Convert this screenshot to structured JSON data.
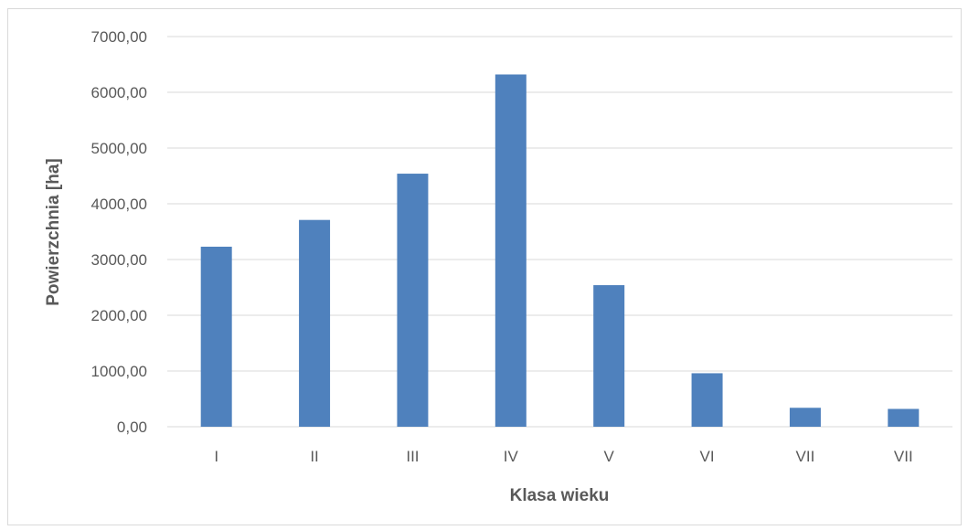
{
  "chart_data": {
    "type": "bar",
    "title": "",
    "xlabel": "Klasa wieku",
    "ylabel": "Powierzchnia [ha]",
    "categories": [
      "I",
      "II",
      "III",
      "IV",
      "V",
      "VI",
      "VII",
      "VII"
    ],
    "values": [
      3230,
      3710,
      4540,
      6320,
      2540,
      960,
      340,
      320
    ],
    "ylim": [
      0,
      7000
    ],
    "yticks": [
      "0,00",
      "1000,00",
      "2000,00",
      "3000,00",
      "4000,00",
      "5000,00",
      "6000,00",
      "7000,00"
    ],
    "ytick_values": [
      0,
      1000,
      2000,
      3000,
      4000,
      5000,
      6000,
      7000
    ],
    "grid": true,
    "legend": "none",
    "bar_color": "#4f81bd",
    "grid_color": "#d9d9d9",
    "text_color": "#595959"
  }
}
